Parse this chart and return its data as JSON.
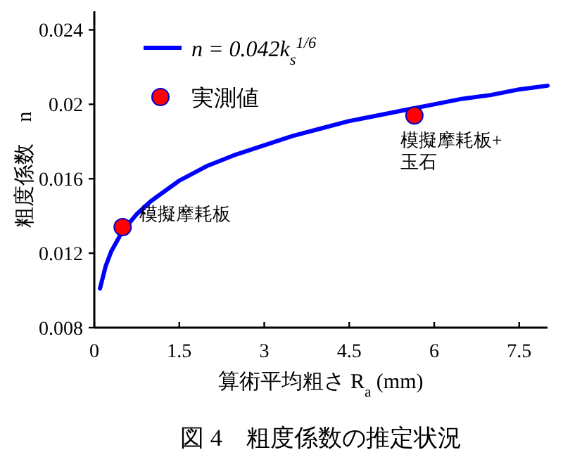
{
  "chart_data": {
    "type": "line",
    "title": "図 4　粗度係数の推定状況",
    "xlabel": "算術平均粗さ R$_{a}$ (mm)",
    "ylabel": "粗度係数　n",
    "xlim": [
      0,
      8
    ],
    "ylim": [
      0.008,
      0.025
    ],
    "xticks": [
      0,
      1.5,
      3,
      4.5,
      6,
      7.5
    ],
    "yticks": [
      0.008,
      0.012,
      0.016,
      0.02,
      0.024
    ],
    "legend": "top left",
    "series": [
      {
        "name": "n = 0.042k$_{s}$$^{1/6}$",
        "color": "#0000ff",
        "line_style": "solid",
        "marker": "none",
        "x": [
          0.1,
          0.2,
          0.3,
          0.5,
          0.75,
          1,
          1.5,
          2,
          2.5,
          3,
          3.5,
          4,
          4.5,
          5,
          5.5,
          6,
          6.5,
          7,
          7.5,
          8
        ],
        "values": [
          0.0101,
          0.0113,
          0.0121,
          0.0132,
          0.0141,
          0.0148,
          0.0159,
          0.0167,
          0.0173,
          0.0178,
          0.0183,
          0.0187,
          0.0191,
          0.0194,
          0.0197,
          0.02,
          0.0203,
          0.0205,
          0.0208,
          0.021
        ]
      },
      {
        "name": "実測値",
        "type": "scatter",
        "color": "#ff0000",
        "marker": "circle",
        "x": [
          0.5,
          5.65
        ],
        "values": [
          0.0134,
          0.0194
        ]
      }
    ],
    "annotations": [
      {
        "text": "模擬摩耗板",
        "x": 0.5,
        "y": 0.0134
      },
      {
        "text": "模擬摩耗板+\n玉石",
        "x": 5.65,
        "y": 0.0194
      }
    ]
  }
}
